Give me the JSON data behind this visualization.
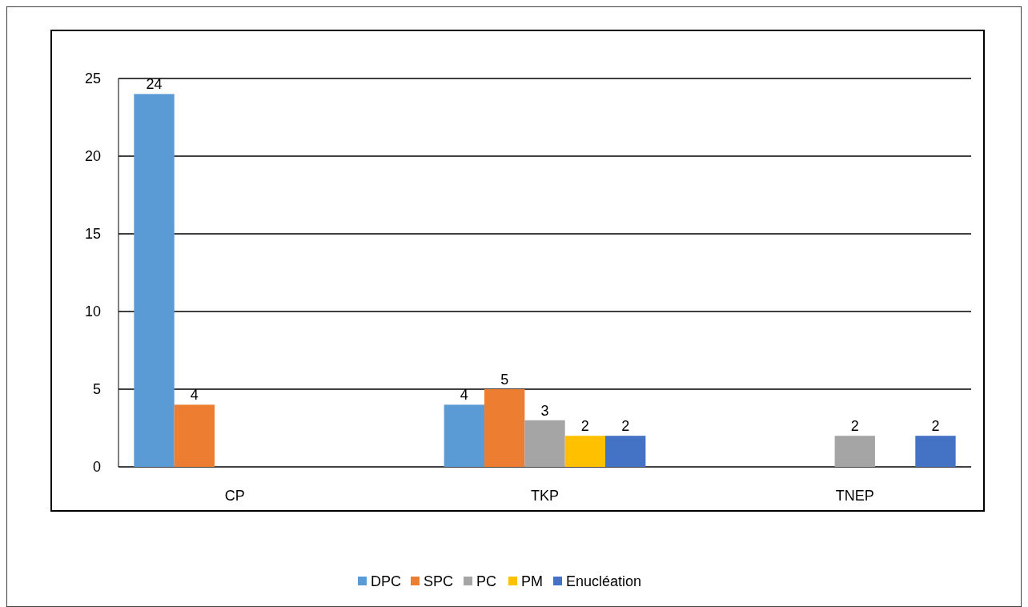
{
  "chart_data": {
    "type": "bar",
    "categories": [
      "CP",
      "TKP",
      "TNEP"
    ],
    "series": [
      {
        "name": "DPC",
        "color": "#5b9bd5",
        "values": [
          24,
          4,
          null
        ]
      },
      {
        "name": "SPC",
        "color": "#ed7d31",
        "values": [
          4,
          5,
          null
        ]
      },
      {
        "name": "PC",
        "color": "#a5a5a5",
        "values": [
          null,
          3,
          2
        ]
      },
      {
        "name": "PM",
        "color": "#ffc000",
        "values": [
          null,
          2,
          null
        ]
      },
      {
        "name": "Enucléation",
        "color": "#4472c4",
        "values": [
          null,
          2,
          2
        ]
      }
    ],
    "ylim": [
      0,
      25
    ],
    "yticks": [
      0,
      5,
      10,
      15,
      20,
      25
    ],
    "grid": "y",
    "legend": "bottom",
    "data_labels": true
  }
}
